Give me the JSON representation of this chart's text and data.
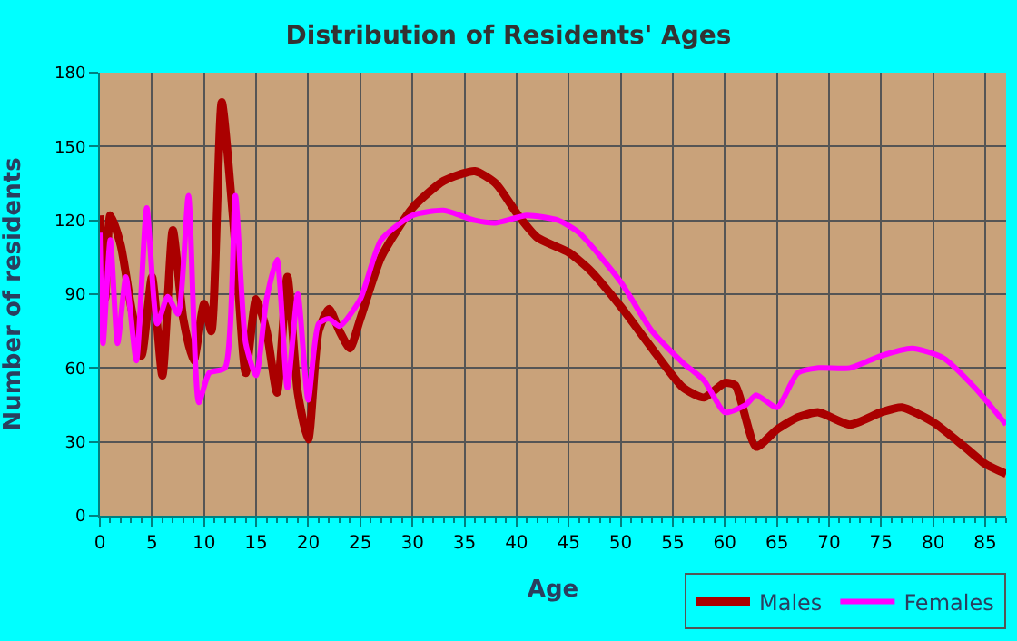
{
  "chart_data": {
    "type": "line",
    "title": "Distribution of Residents' Ages",
    "xlabel": "Age",
    "ylabel": "Number of residents",
    "xlim": [
      0,
      87
    ],
    "xticks": [
      0,
      5,
      10,
      15,
      20,
      25,
      30,
      35,
      40,
      45,
      50,
      55,
      60,
      65,
      70,
      75,
      80,
      85
    ],
    "ylim": [
      0,
      180
    ],
    "yticks": [
      0,
      30,
      60,
      90,
      120,
      150,
      180
    ],
    "grid": true,
    "legend": "bottom right",
    "series": [
      {
        "name": "Males",
        "color": "#aa0000",
        "x": [
          0,
          0.5,
          1,
          2,
          3,
          4,
          5,
          6,
          7,
          8,
          9,
          10,
          10.7,
          11.7,
          13,
          14,
          15,
          16,
          17,
          18,
          19,
          20,
          21,
          22,
          23,
          24,
          25,
          27,
          30,
          33,
          36,
          38,
          40,
          42,
          45,
          47,
          50,
          53,
          56,
          58,
          60,
          61,
          63,
          65,
          67,
          69,
          72,
          75,
          77,
          80,
          83,
          85,
          87
        ],
        "values": [
          122,
          88,
          122,
          110,
          85,
          65,
          97,
          57,
          116,
          80,
          63,
          86,
          75,
          168,
          110,
          58,
          88,
          75,
          50,
          97,
          50,
          31,
          75,
          84,
          75,
          68,
          80,
          105,
          125,
          136,
          140,
          135,
          123,
          113,
          107,
          100,
          85,
          68,
          52,
          48,
          54,
          53,
          28,
          35,
          40,
          42,
          37,
          42,
          44,
          38,
          28,
          21,
          17
        ]
      },
      {
        "name": "Females",
        "color": "#ff00ff",
        "x": [
          0,
          0.3,
          1,
          1.7,
          2.5,
          3.5,
          4.5,
          5.5,
          6.5,
          7.5,
          8.5,
          9.5,
          10.5,
          12,
          13,
          14,
          15,
          16,
          17,
          18,
          19,
          20,
          21,
          22,
          23,
          25,
          27,
          30,
          33,
          36,
          38,
          41,
          44,
          46,
          50,
          53,
          56,
          58,
          60,
          62,
          63,
          65,
          67,
          69,
          72,
          75,
          78,
          81,
          84,
          87
        ],
        "values": [
          115,
          70,
          112,
          70,
          97,
          63,
          125,
          78,
          89,
          82,
          130,
          46,
          58,
          60,
          130,
          70,
          57,
          88,
          104,
          52,
          90,
          47,
          78,
          80,
          77,
          88,
          112,
          122,
          124,
          120,
          119,
          122,
          120,
          115,
          95,
          75,
          62,
          55,
          42,
          45,
          49,
          44,
          58,
          60,
          60,
          65,
          68,
          64,
          52,
          37
        ]
      }
    ]
  }
}
